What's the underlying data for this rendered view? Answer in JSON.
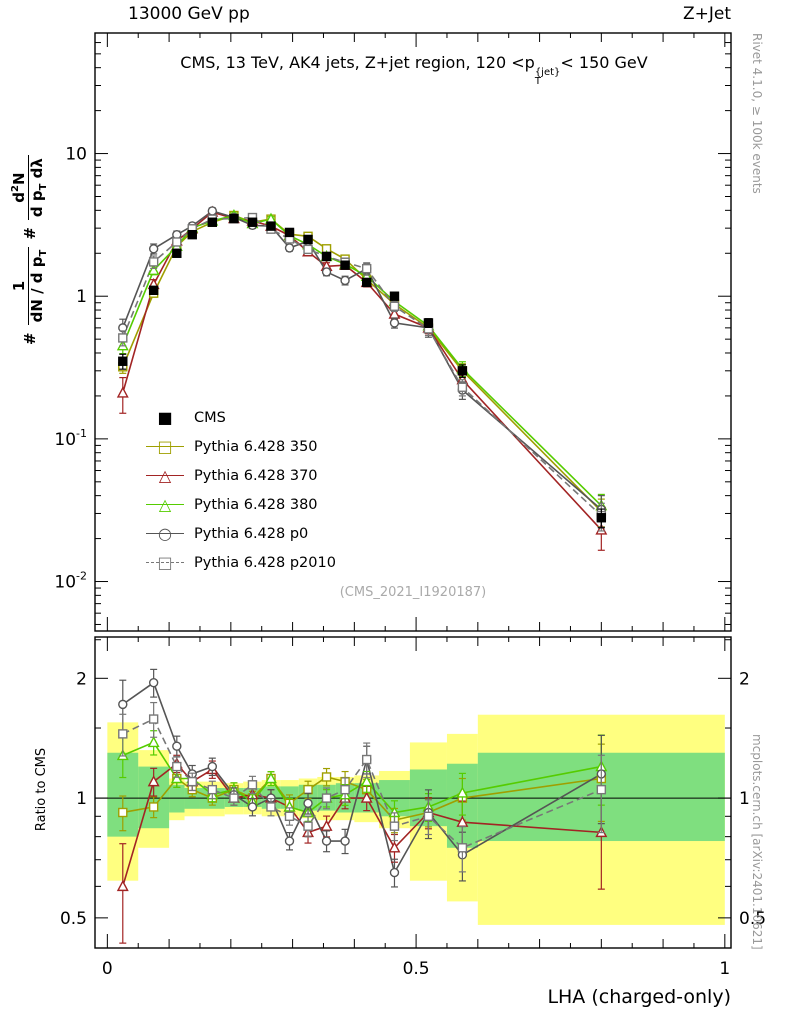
{
  "header": {
    "left": "13000 GeV pp",
    "right": "Z+Jet"
  },
  "panel_title": {
    "pre": "CMS, 13 TeV, AK4 jets, Z+jet region, 120 <p",
    "sup": "{jet}",
    "sub": "T",
    "post": "< 150 GeV"
  },
  "watermark": "(CMS_2021_I1920187)",
  "side_notes": {
    "top_right": "Rivet 4.1.0, ≥ 100k events",
    "bottom_right": "mcplots.cern.ch [arXiv:2401.10621]"
  },
  "axes": {
    "x_label": "LHA (charged-only)",
    "ratio_label": "Ratio to CMS"
  },
  "ylabel_top": {
    "hash1": "#",
    "num1": "1",
    "den1": "dN / d p",
    "den1_sub": "T",
    "hash2": "#",
    "num2_a": "d",
    "num2_sup": "2",
    "num2_b": "N",
    "den2_a": "d p",
    "den2_sub": "T",
    "den2_b": " dλ"
  },
  "legend": {
    "items": [
      {
        "label": "CMS",
        "glyph": "■",
        "color": "#000000",
        "line": "none"
      },
      {
        "label": "Pythia 6.428 350",
        "glyph": "□",
        "color": "#9f9f00",
        "line": "solid"
      },
      {
        "label": "Pythia 6.428 370",
        "glyph": "△",
        "color": "#a22424",
        "line": "solid"
      },
      {
        "label": "Pythia 6.428 380",
        "glyph": "△",
        "color": "#55cc00",
        "line": "solid"
      },
      {
        "label": "Pythia 6.428 p0",
        "glyph": "○",
        "color": "#555555",
        "line": "solid"
      },
      {
        "label": "Pythia 6.428 p2010",
        "glyph": "□",
        "color": "#777777",
        "line": "dashed"
      }
    ]
  },
  "chart_data": {
    "type": "line",
    "title": "CMS, 13 TeV, AK4 jets, Z+jet region, 120 < pT{jet} < 150 GeV",
    "xlabel": "LHA (charged-only)",
    "ylabel": "1/(dN/dpT) d2N/(dpT dλ)",
    "ratio_ylabel": "Ratio to CMS",
    "x_range": [
      -0.02,
      1.01
    ],
    "top_y_range": [
      0.0045,
      70
    ],
    "top_y_scale": "log",
    "ratio_range": [
      0.42,
      2.54
    ],
    "ratio_scale": "log",
    "x": [
      0.025,
      0.075,
      0.1125,
      0.1375,
      0.17,
      0.205,
      0.235,
      0.265,
      0.295,
      0.325,
      0.355,
      0.385,
      0.42,
      0.465,
      0.52,
      0.575,
      0.8
    ],
    "bin_edges": [
      0,
      0.05,
      0.1,
      0.125,
      0.15,
      0.19,
      0.22,
      0.25,
      0.28,
      0.31,
      0.34,
      0.37,
      0.4,
      0.44,
      0.49,
      0.55,
      0.6,
      1.0
    ],
    "x_major_ticks": [
      {
        "v": 0,
        "label": "0"
      },
      {
        "v": 0.5,
        "label": "0.5"
      },
      {
        "v": 1,
        "label": "1"
      }
    ],
    "top_y_ticks": [
      {
        "v": 10,
        "label": "10",
        "exp": ""
      },
      {
        "v": 1,
        "label": "1",
        "exp": ""
      },
      {
        "v": 0.1,
        "label": "10",
        "exp": "-1"
      },
      {
        "v": 0.01,
        "label": "10",
        "exp": "-2"
      }
    ],
    "ratio_y_ticks": [
      {
        "v": 0.5,
        "label": "0.5"
      },
      {
        "v": 1,
        "label": "1"
      },
      {
        "v": 2,
        "label": "2"
      }
    ],
    "ratio_y_minor": [
      0.6,
      0.7,
      0.8,
      0.9,
      1.5,
      2.5
    ],
    "series": [
      {
        "name": "CMS",
        "color": "#000000",
        "marker": "square",
        "filled": true,
        "line": "none",
        "values": [
          0.35,
          1.1,
          2.0,
          2.7,
          3.3,
          3.5,
          3.3,
          3.1,
          2.8,
          2.5,
          1.9,
          1.65,
          1.25,
          1.0,
          0.65,
          0.3,
          0.028
        ],
        "rel_err": [
          0.12,
          0.06,
          0.04,
          0.04,
          0.04,
          0.04,
          0.04,
          0.04,
          0.04,
          0.04,
          0.05,
          0.05,
          0.05,
          0.06,
          0.07,
          0.1,
          0.15
        ]
      },
      {
        "name": "Pythia 6.428 350",
        "color": "#9f9f00",
        "marker": "square",
        "filled": false,
        "line": "solid",
        "values": [
          0.32,
          1.05,
          2.24,
          2.84,
          3.3,
          3.68,
          3.3,
          3.47,
          2.72,
          2.63,
          2.15,
          1.82,
          1.31,
          0.88,
          0.6,
          0.3,
          0.031
        ],
        "ratio": [
          0.92,
          0.95,
          1.12,
          1.05,
          1.0,
          1.05,
          1.0,
          1.12,
          0.97,
          1.05,
          1.13,
          1.1,
          1.05,
          0.88,
          0.92,
          1.0,
          1.12
        ],
        "rel_err": [
          0.1,
          0.06,
          0.05,
          0.04,
          0.04,
          0.04,
          0.04,
          0.04,
          0.05,
          0.05,
          0.05,
          0.06,
          0.06,
          0.07,
          0.08,
          0.12,
          0.22
        ]
      },
      {
        "name": "Pythia 6.428 370",
        "color": "#a22424",
        "marker": "triangle",
        "filled": false,
        "line": "solid",
        "values": [
          0.21,
          1.21,
          2.44,
          2.97,
          3.89,
          3.5,
          3.37,
          3.1,
          2.66,
          2.05,
          1.62,
          1.65,
          1.25,
          0.75,
          0.6,
          0.26,
          0.023
        ],
        "ratio": [
          0.6,
          1.1,
          1.22,
          1.1,
          1.18,
          1.0,
          1.02,
          1.0,
          0.95,
          0.82,
          0.85,
          1.0,
          1.0,
          0.75,
          0.92,
          0.87,
          0.82
        ],
        "rel_err": [
          0.28,
          0.08,
          0.05,
          0.05,
          0.05,
          0.04,
          0.05,
          0.05,
          0.05,
          0.06,
          0.06,
          0.06,
          0.07,
          0.08,
          0.09,
          0.13,
          0.28
        ]
      },
      {
        "name": "Pythia 6.428 380",
        "color": "#55cc00",
        "marker": "triangle",
        "filled": false,
        "line": "solid",
        "values": [
          0.45,
          1.52,
          2.24,
          3.02,
          3.37,
          3.68,
          3.23,
          3.47,
          2.66,
          2.3,
          1.9,
          1.68,
          1.38,
          0.92,
          0.62,
          0.31,
          0.034
        ],
        "ratio": [
          1.28,
          1.38,
          1.12,
          1.12,
          1.02,
          1.05,
          0.98,
          1.12,
          0.95,
          0.92,
          1.0,
          1.02,
          1.1,
          0.92,
          0.95,
          1.03,
          1.2
        ],
        "rel_err": [
          0.12,
          0.07,
          0.05,
          0.04,
          0.04,
          0.04,
          0.04,
          0.04,
          0.05,
          0.05,
          0.05,
          0.06,
          0.06,
          0.07,
          0.08,
          0.12,
          0.2
        ]
      },
      {
        "name": "Pythia 6.428 p0",
        "color": "#555555",
        "marker": "circle",
        "filled": false,
        "line": "solid",
        "values": [
          0.6,
          2.15,
          2.7,
          3.11,
          3.96,
          3.57,
          3.14,
          3.1,
          2.18,
          2.43,
          1.48,
          1.29,
          1.56,
          0.65,
          0.6,
          0.22,
          0.032
        ],
        "ratio": [
          1.72,
          1.95,
          1.35,
          1.15,
          1.2,
          1.02,
          0.95,
          1.0,
          0.78,
          0.97,
          0.78,
          0.78,
          1.25,
          0.65,
          0.92,
          0.72,
          1.15
        ],
        "rel_err": [
          0.15,
          0.08,
          0.06,
          0.05,
          0.05,
          0.04,
          0.05,
          0.05,
          0.05,
          0.06,
          0.06,
          0.07,
          0.08,
          0.08,
          0.14,
          0.14,
          0.25
        ]
      },
      {
        "name": "Pythia 6.428 p2010",
        "color": "#777777",
        "marker": "square",
        "filled": false,
        "line": "dashed",
        "values": [
          0.51,
          1.74,
          2.4,
          2.97,
          3.47,
          3.5,
          3.56,
          2.95,
          2.52,
          2.13,
          1.9,
          1.73,
          1.56,
          0.85,
          0.59,
          0.23,
          0.029
        ],
        "ratio": [
          1.45,
          1.58,
          1.2,
          1.1,
          1.05,
          1.0,
          1.08,
          0.95,
          0.9,
          0.85,
          1.0,
          1.05,
          1.25,
          0.85,
          0.9,
          0.75,
          1.05
        ],
        "rel_err": [
          0.12,
          0.1,
          0.06,
          0.05,
          0.05,
          0.04,
          0.05,
          0.05,
          0.05,
          0.06,
          0.06,
          0.07,
          0.1,
          0.08,
          0.1,
          0.13,
          0.22
        ]
      }
    ],
    "bands": {
      "yellow_color": "#ffff80",
      "green_color": "#7fdf7f",
      "yellow": [
        [
          0.62,
          1.55
        ],
        [
          0.75,
          1.32
        ],
        [
          0.88,
          1.12
        ],
        [
          0.9,
          1.1
        ],
        [
          0.9,
          1.1
        ],
        [
          0.91,
          1.09
        ],
        [
          0.91,
          1.1
        ],
        [
          0.9,
          1.11
        ],
        [
          0.9,
          1.11
        ],
        [
          0.89,
          1.12
        ],
        [
          0.88,
          1.13
        ],
        [
          0.88,
          1.13
        ],
        [
          0.87,
          1.14
        ],
        [
          0.84,
          1.17
        ],
        [
          0.62,
          1.38
        ],
        [
          0.55,
          1.45
        ],
        [
          0.48,
          1.62
        ]
      ],
      "green": [
        [
          0.8,
          1.3
        ],
        [
          0.84,
          1.2
        ],
        [
          0.92,
          1.08
        ],
        [
          0.94,
          1.06
        ],
        [
          0.94,
          1.06
        ],
        [
          0.95,
          1.06
        ],
        [
          0.95,
          1.06
        ],
        [
          0.94,
          1.07
        ],
        [
          0.94,
          1.07
        ],
        [
          0.93,
          1.08
        ],
        [
          0.93,
          1.08
        ],
        [
          0.92,
          1.09
        ],
        [
          0.92,
          1.09
        ],
        [
          0.9,
          1.11
        ],
        [
          0.85,
          1.18
        ],
        [
          0.75,
          1.22
        ],
        [
          0.78,
          1.3
        ]
      ]
    }
  }
}
